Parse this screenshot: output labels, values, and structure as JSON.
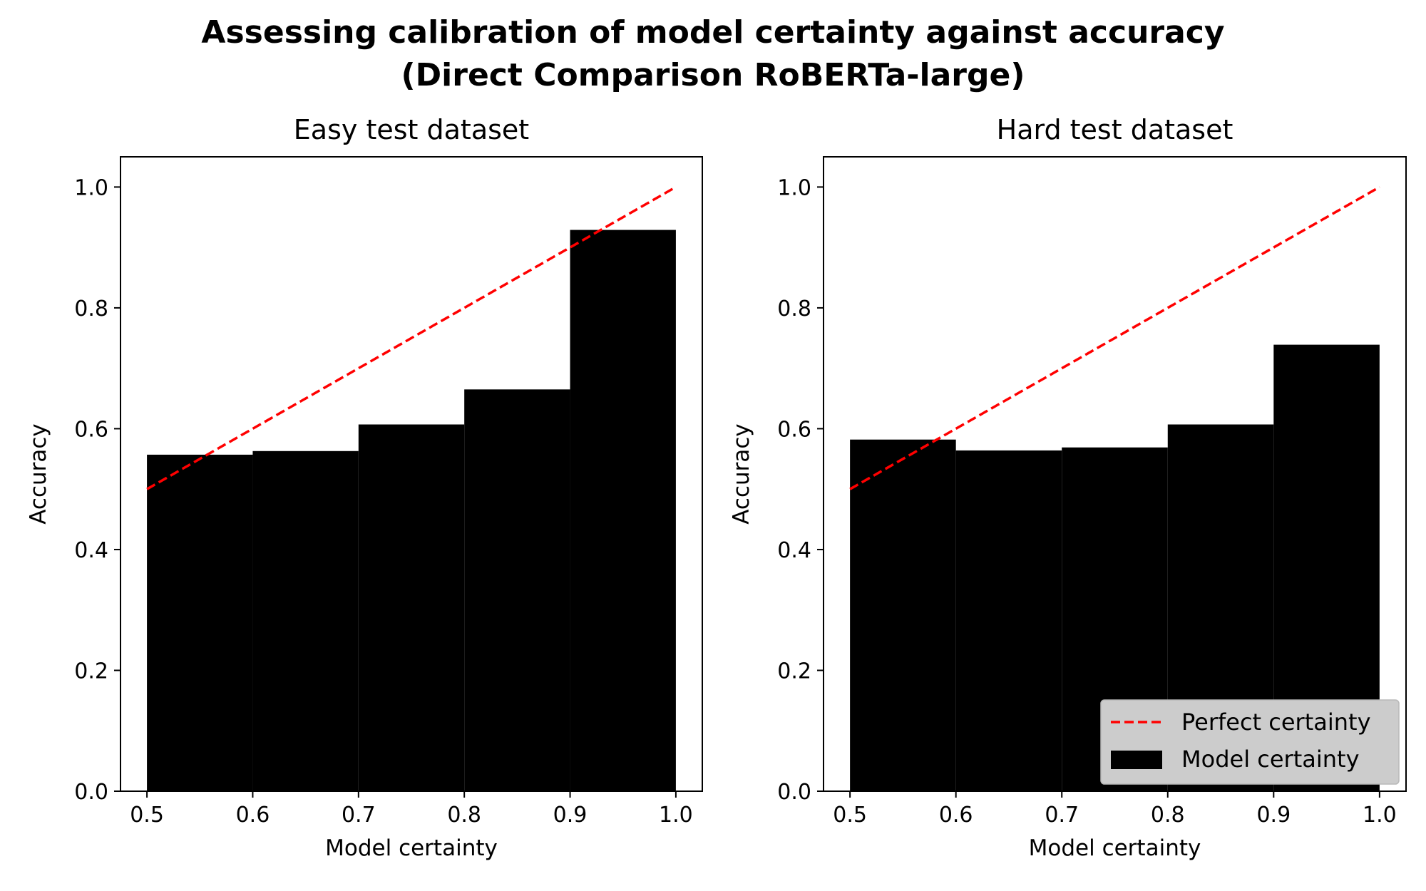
{
  "figure": {
    "title_line1": "Assessing calibration of model certainty against accuracy",
    "title_line2": "(Direct Comparison RoBERTa-large)"
  },
  "colors": {
    "bars": "#000000",
    "perfect_line": "#ff0000",
    "legend_bg": "#cccccc"
  },
  "legend": {
    "location": "lower right",
    "panel": 1,
    "entries": [
      {
        "label": "Perfect certainty",
        "kind": "dashed-line"
      },
      {
        "label": "Model certainty",
        "kind": "bar"
      }
    ]
  },
  "chart_data": [
    {
      "type": "bar",
      "title": "Easy test dataset",
      "xlabel": "Model certainty",
      "ylabel": "Accuracy",
      "xlim": [
        0.475,
        1.025
      ],
      "ylim": [
        0.0,
        1.05
      ],
      "xticks": [
        "0.5",
        "0.6",
        "0.7",
        "0.8",
        "0.9",
        "1.0"
      ],
      "yticks": [
        "0.0",
        "0.2",
        "0.4",
        "0.6",
        "0.8",
        "1.0"
      ],
      "bins": [
        {
          "x_start": 0.5,
          "x_end": 0.6,
          "value": 0.557
        },
        {
          "x_start": 0.6,
          "x_end": 0.7,
          "value": 0.563
        },
        {
          "x_start": 0.7,
          "x_end": 0.8,
          "value": 0.607
        },
        {
          "x_start": 0.8,
          "x_end": 0.9,
          "value": 0.665
        },
        {
          "x_start": 0.9,
          "x_end": 1.0,
          "value": 0.929
        }
      ],
      "reference_line": {
        "name": "Perfect certainty",
        "x": [
          0.5,
          1.0
        ],
        "y": [
          0.5,
          1.0
        ]
      },
      "grid": false
    },
    {
      "type": "bar",
      "title": "Hard test dataset",
      "xlabel": "Model certainty",
      "ylabel": "Accuracy",
      "xlim": [
        0.475,
        1.025
      ],
      "ylim": [
        0.0,
        1.05
      ],
      "xticks": [
        "0.5",
        "0.6",
        "0.7",
        "0.8",
        "0.9",
        "1.0"
      ],
      "yticks": [
        "0.0",
        "0.2",
        "0.4",
        "0.6",
        "0.8",
        "1.0"
      ],
      "bins": [
        {
          "x_start": 0.5,
          "x_end": 0.6,
          "value": 0.582
        },
        {
          "x_start": 0.6,
          "x_end": 0.7,
          "value": 0.564
        },
        {
          "x_start": 0.7,
          "x_end": 0.8,
          "value": 0.569
        },
        {
          "x_start": 0.8,
          "x_end": 0.9,
          "value": 0.607
        },
        {
          "x_start": 0.9,
          "x_end": 1.0,
          "value": 0.739
        }
      ],
      "reference_line": {
        "name": "Perfect certainty",
        "x": [
          0.5,
          1.0
        ],
        "y": [
          0.5,
          1.0
        ]
      },
      "grid": false
    }
  ]
}
